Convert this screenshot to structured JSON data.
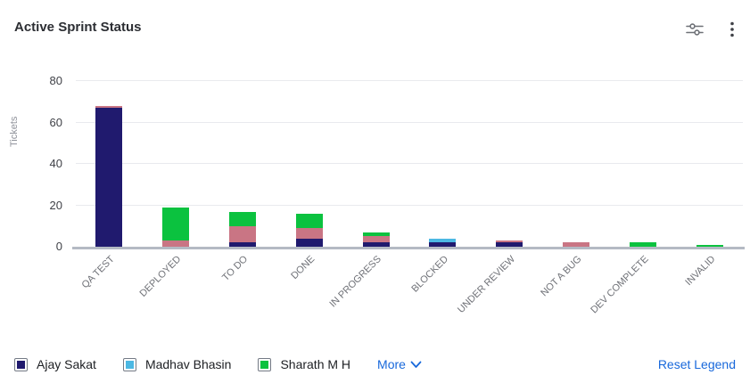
{
  "header": {
    "title": "Active Sprint Status",
    "icons": [
      "sliders-settings-icon",
      "kebab-menu-icon"
    ]
  },
  "chart_data": {
    "type": "bar",
    "stacked": true,
    "title": "Active Sprint Status",
    "xlabel": "",
    "ylabel": "Tickets",
    "ylim": [
      0,
      80
    ],
    "yticks": [
      0,
      20,
      40,
      60,
      80
    ],
    "grid": true,
    "legend_position": "bottom",
    "categories": [
      "QA TEST",
      "DEPLOYED",
      "TO DO",
      "DONE",
      "IN PROGRESS",
      "BLOCKED",
      "UNDER REVIEW",
      "NOT A BUG",
      "DEV COMPLETE",
      "INVALID"
    ],
    "series": [
      {
        "name": "Ajay Sakat",
        "color": "#201a6e",
        "values": [
          67,
          0,
          2,
          4,
          2,
          2,
          2,
          0,
          0,
          0
        ]
      },
      {
        "name": "Madhav Bhasin",
        "color": "#4cb8e3",
        "values": [
          0,
          0,
          0,
          0,
          0,
          2,
          0,
          0,
          0,
          0
        ]
      },
      {
        "name": "",
        "color": "#c97584",
        "values": [
          1,
          3,
          8,
          5,
          3,
          0,
          1,
          2,
          0,
          0
        ]
      },
      {
        "name": "Sharath M H",
        "color": "#0bc23f",
        "values": [
          0,
          16,
          7,
          7,
          2,
          0,
          0,
          0,
          2,
          1
        ]
      }
    ],
    "totals": [
      68,
      19,
      17,
      16,
      7,
      4,
      3,
      2,
      2,
      1
    ]
  },
  "legend": {
    "items": [
      {
        "label": "Ajay Sakat",
        "color": "#201a6e"
      },
      {
        "label": "Madhav Bhasin",
        "color": "#4cb8e3"
      },
      {
        "label": "Sharath M H",
        "color": "#0bc23f"
      }
    ],
    "more_label": "More",
    "reset_label": "Reset Legend"
  },
  "colors": {
    "link_blue": "#1868db",
    "gridline": "#e9eaee",
    "axis_baseline": "#b4bac4"
  }
}
